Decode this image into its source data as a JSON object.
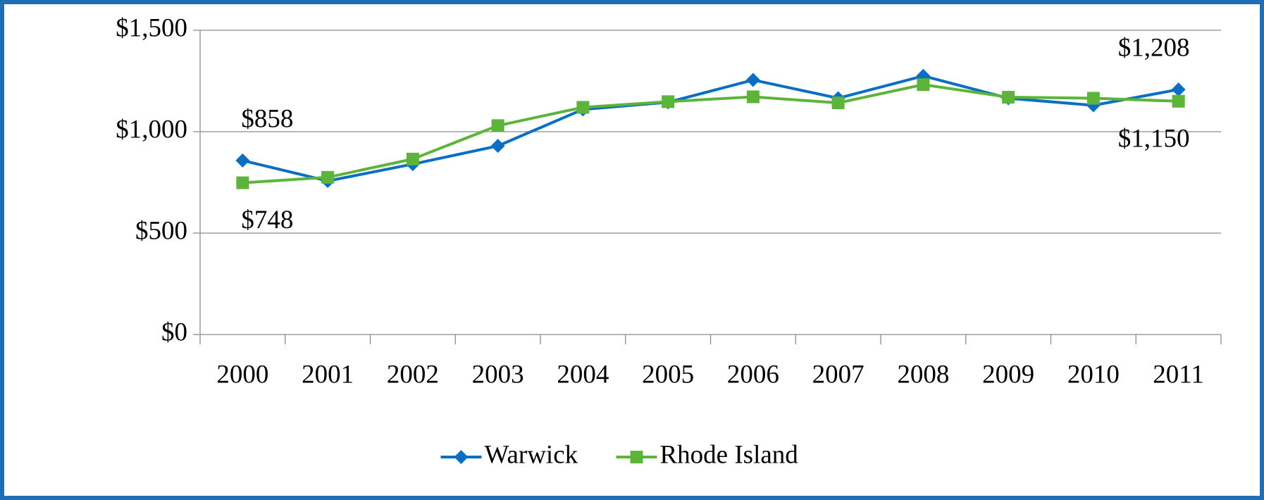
{
  "chart_data": {
    "type": "line",
    "categories": [
      "2000",
      "2001",
      "2002",
      "2003",
      "2004",
      "2005",
      "2006",
      "2007",
      "2008",
      "2009",
      "2010",
      "2011"
    ],
    "series": [
      {
        "name": "Warwick",
        "color": "#0a6fc2",
        "marker": "diamond",
        "values": [
          858,
          757,
          840,
          930,
          1110,
          1145,
          1255,
          1165,
          1275,
          1165,
          1130,
          1208
        ],
        "value_labels": [
          "$858",
          null,
          null,
          null,
          null,
          null,
          null,
          null,
          null,
          null,
          null,
          "$1,208"
        ]
      },
      {
        "name": "Rhode Island",
        "color": "#5db43a",
        "marker": "square",
        "values": [
          748,
          775,
          865,
          1030,
          1120,
          1148,
          1172,
          1142,
          1232,
          1170,
          1165,
          1150
        ],
        "value_labels": [
          "$748",
          null,
          null,
          null,
          null,
          null,
          null,
          null,
          null,
          null,
          null,
          "$1,150"
        ]
      }
    ],
    "ylim": [
      0,
      1500
    ],
    "yticks": [
      {
        "value": 0,
        "label": "$0"
      },
      {
        "value": 500,
        "label": "$500"
      },
      {
        "value": 1000,
        "label": "$1,000"
      },
      {
        "value": 1500,
        "label": "$1,500"
      }
    ],
    "grid": true,
    "legend": "bottom"
  }
}
